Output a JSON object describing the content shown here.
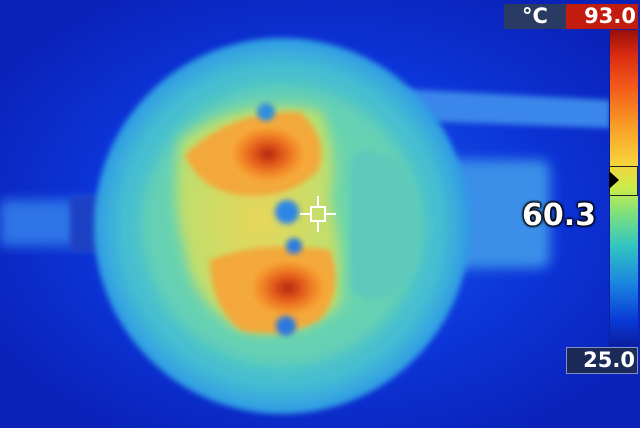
{
  "readout": {
    "unit": "°C",
    "max_temp": "93.0",
    "min_temp": "25.0",
    "spot_temp": "60.3"
  },
  "palette": {
    "name": "iron-rainbow",
    "hot_color": "#c21c0f",
    "cold_color": "#0a1fa0",
    "spot_level_fraction": 0.52
  },
  "icons": {
    "spot_marker": "crosshair-icon",
    "level_pointer": "triangle-right-icon"
  }
}
